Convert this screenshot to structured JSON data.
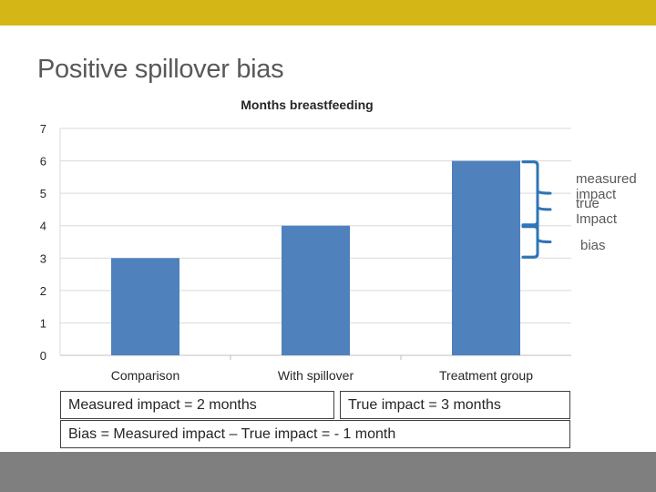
{
  "slide": {
    "title": "Positive spillover bias",
    "colors": {
      "top_band": "#d4b617",
      "bottom_band": "#7f7f7f",
      "bar": "#4f81bd",
      "bracket": "#2e75b6"
    }
  },
  "chart_data": {
    "type": "bar",
    "title": "Months breastfeeding",
    "categories": [
      "Comparison",
      "With spillover",
      "Treatment group"
    ],
    "values": [
      3,
      4,
      6
    ],
    "xlabel": "",
    "ylabel": "",
    "ylim": [
      0,
      7
    ],
    "yticks": [
      0,
      1,
      2,
      3,
      4,
      5,
      6,
      7
    ],
    "grid": true,
    "legend": "none"
  },
  "annotations": {
    "measured_impact": "measured impact",
    "true_impact": "true Impact",
    "bias": "bias"
  },
  "boxes": {
    "measured": "Measured impact = 2 months",
    "true": "True impact = 3 months",
    "bias": "Bias = Measured impact – True impact = - 1 month"
  }
}
